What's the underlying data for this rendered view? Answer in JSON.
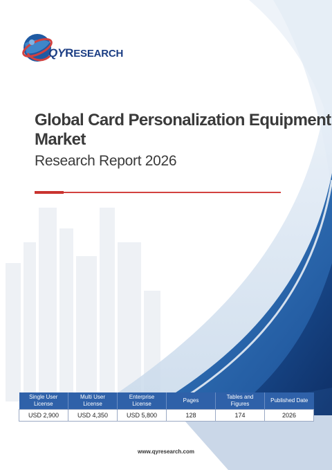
{
  "brand": {
    "logo_prefix": "QY",
    "logo_r": "R",
    "logo_suffix": "ESEARCH",
    "primary_color": "#1c3e84",
    "accent_red": "#d2413f"
  },
  "title": {
    "line1": "Global Card Personalization Equipment",
    "line2": "Market",
    "subtitle": "Research Report 2026"
  },
  "table": {
    "headers": [
      [
        "Single User",
        "License"
      ],
      [
        "Multi User",
        "License"
      ],
      [
        "Enterprise",
        "License"
      ],
      [
        "Pages"
      ],
      [
        "Tables and",
        "Figures"
      ],
      [
        "Published Date"
      ]
    ],
    "values": [
      "USD 2,900",
      "USD 4,350",
      "USD 5,800",
      "128",
      "174",
      "2026"
    ]
  },
  "footer": {
    "url": "www.qyresearch.com"
  }
}
